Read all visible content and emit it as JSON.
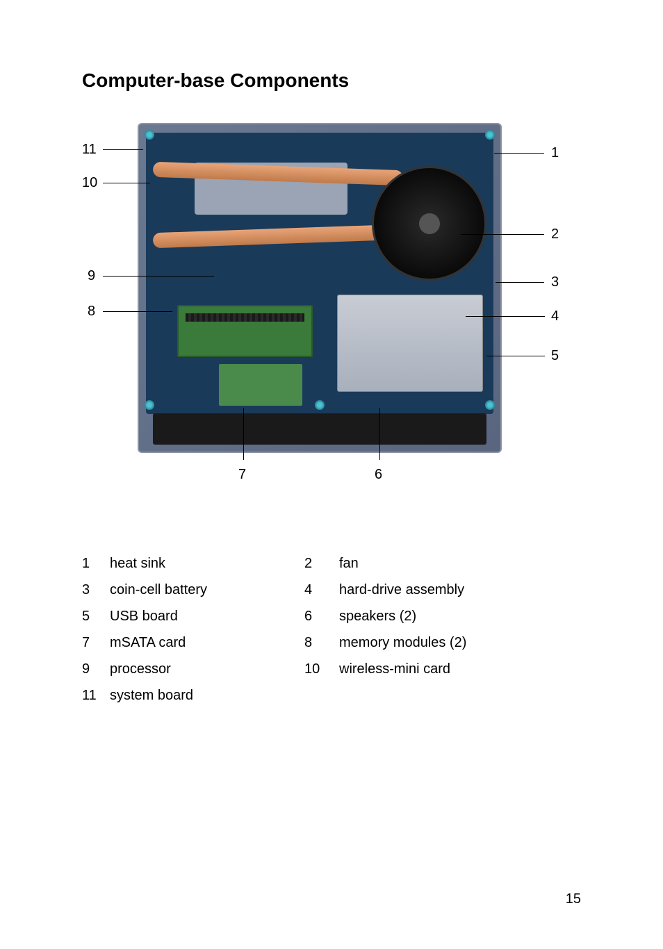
{
  "title": "Computer-base Components",
  "page_number": "15",
  "diagram": {
    "type": "labeled-photo-diagram",
    "background_color": "#ffffff",
    "board_colors": {
      "chassis": "#6a7890",
      "pcb": "#1a3a5a",
      "heatpipe": "#d48a58",
      "heatsink_plate": "#9aa4b4",
      "fan": "#1a1a1a",
      "hdd": "#b8bec8",
      "ram": "#3a7a3a",
      "msata": "#4a8a4a",
      "speaker": "#1a1a1a",
      "screw": "#4ac4d4"
    },
    "callouts": {
      "c1": "1",
      "c2": "2",
      "c3": "3",
      "c4": "4",
      "c5": "5",
      "c6": "6",
      "c7": "7",
      "c8": "8",
      "c9": "9",
      "c10": "10",
      "c11": "11"
    },
    "callout_fontsize": 20,
    "line_color": "#000000"
  },
  "legend": {
    "fontsize": 20,
    "items": [
      {
        "num": "1",
        "label": "heat sink"
      },
      {
        "num": "2",
        "label": "fan"
      },
      {
        "num": "3",
        "label": "coin-cell battery"
      },
      {
        "num": "4",
        "label": "hard-drive assembly"
      },
      {
        "num": "5",
        "label": "USB board"
      },
      {
        "num": "6",
        "label": "speakers (2)"
      },
      {
        "num": "7",
        "label": "mSATA card"
      },
      {
        "num": "8",
        "label": "memory modules (2)"
      },
      {
        "num": "9",
        "label": "processor"
      },
      {
        "num": "10",
        "label": "wireless-mini card"
      },
      {
        "num": "11",
        "label": "system board"
      }
    ]
  }
}
